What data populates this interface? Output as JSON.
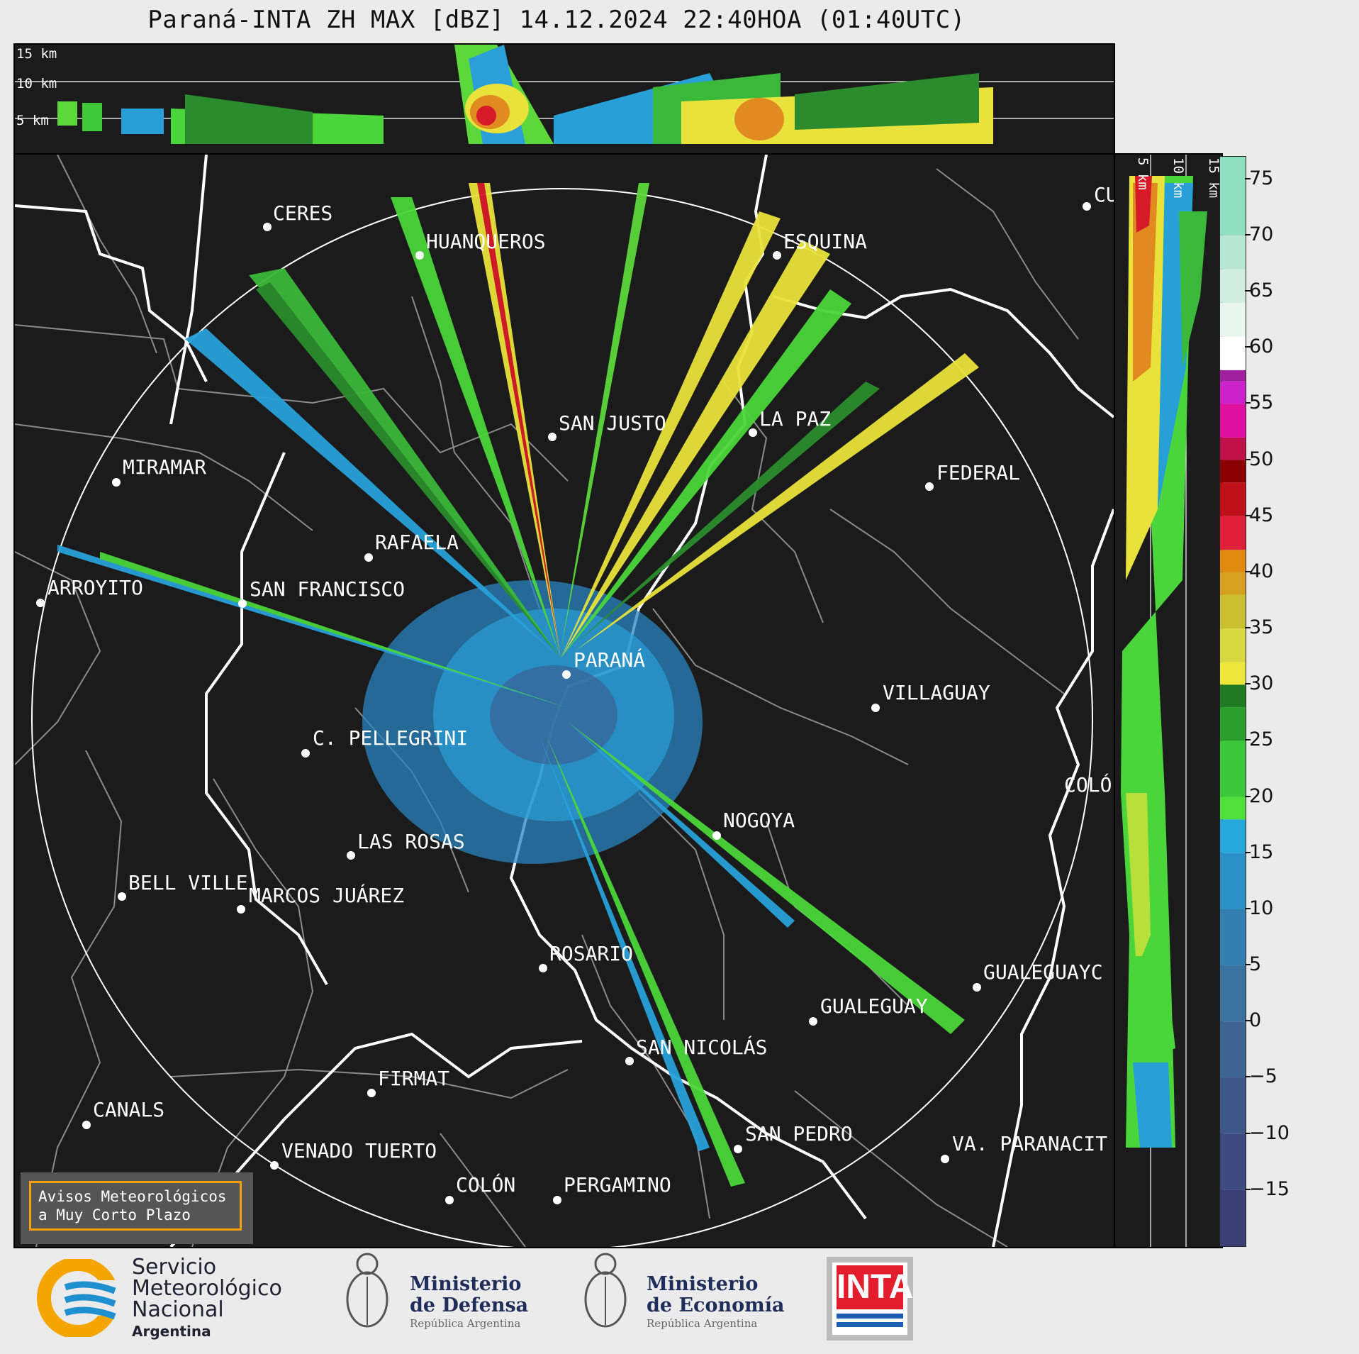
{
  "title": "Paraná-INTA ZH MAX [dBZ] 14.12.2024 22:40HOA (01:40UTC)",
  "top_panel": {
    "height_labels": [
      "15 km",
      "10 km",
      "5 km"
    ]
  },
  "side_panel": {
    "height_labels": [
      "5 km",
      "10 km",
      "15 km"
    ]
  },
  "cities": [
    {
      "name": "CERES"
    },
    {
      "name": "HUANQUEROS"
    },
    {
      "name": "ESQUINA"
    },
    {
      "name": "CU"
    },
    {
      "name": "SAN JUSTO"
    },
    {
      "name": "LA PAZ"
    },
    {
      "name": "MIRAMAR"
    },
    {
      "name": "FEDERAL"
    },
    {
      "name": "RAFAELA"
    },
    {
      "name": "ARROYITO"
    },
    {
      "name": "SAN FRANCISCO"
    },
    {
      "name": "PARANÁ"
    },
    {
      "name": "VILLAGUAY"
    },
    {
      "name": "C. PELLEGRINI"
    },
    {
      "name": "COLÓ"
    },
    {
      "name": "NOGOYA"
    },
    {
      "name": "LAS ROSAS"
    },
    {
      "name": "BELL VILLE"
    },
    {
      "name": "MARCOS JUÁREZ"
    },
    {
      "name": "ROSARIO"
    },
    {
      "name": "GUALEGUAYC"
    },
    {
      "name": "GUALEGUAY"
    },
    {
      "name": "SAN NICOLÁS"
    },
    {
      "name": "FIRMAT"
    },
    {
      "name": "CANALS"
    },
    {
      "name": "SAN PEDRO"
    },
    {
      "name": "VENADO TUERTO"
    },
    {
      "name": "VA. PARANACIT"
    },
    {
      "name": "COLÓN"
    },
    {
      "name": "PERGAMINO"
    }
  ],
  "colorbar": {
    "ticks": [
      "75",
      "70",
      "65",
      "60",
      "55",
      "50",
      "45",
      "40",
      "35",
      "30",
      "25",
      "20",
      "15",
      "10",
      "5",
      "0",
      "−5",
      "−10",
      "−15"
    ],
    "range": [
      -20,
      77
    ]
  },
  "avisos": {
    "line1": "Avisos Meteorológicos",
    "line2": "a Muy Corto Plazo"
  },
  "logos": {
    "smn": {
      "line1": "Servicio",
      "line2": "Meteorológico",
      "line3": "Nacional",
      "line4": "Argentina"
    },
    "defensa": {
      "line1": "Ministerio",
      "line2": "de Defensa",
      "line3": "República Argentina"
    },
    "economia": {
      "line1": "Ministerio",
      "line2": "de Economía",
      "line3": "República Argentina"
    },
    "inta": {
      "text": "INTA"
    }
  }
}
